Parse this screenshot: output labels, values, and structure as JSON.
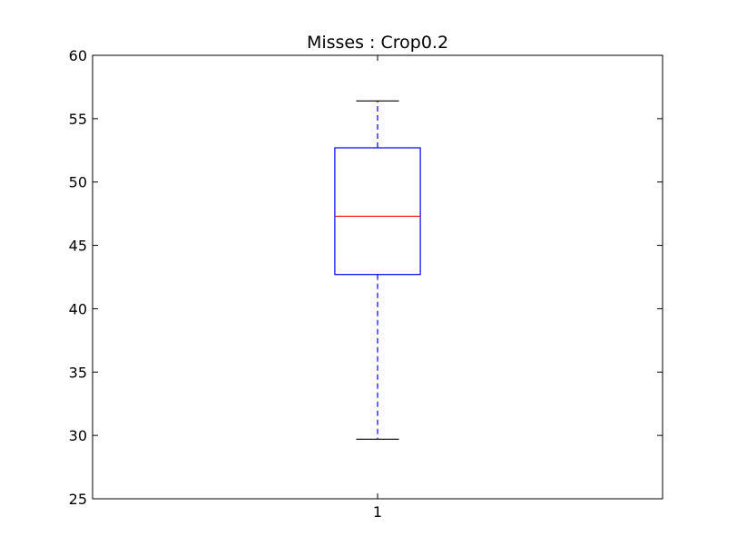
{
  "chart_data": {
    "type": "box",
    "title": "Misses : Crop0.2",
    "xlabel": "",
    "ylabel": "",
    "categories": [
      "1"
    ],
    "ylim": [
      25,
      60
    ],
    "yticks": [
      25,
      30,
      35,
      40,
      45,
      50,
      55,
      60
    ],
    "grid": false,
    "boxes": [
      {
        "category": "1",
        "whisker_low": 29.7,
        "q1": 42.7,
        "median": 47.3,
        "q3": 52.7,
        "whisker_high": 56.4
      }
    ],
    "colors": {
      "box": "#0000ff",
      "median": "#ff0000",
      "whisker": "#0000ff",
      "cap": "#000000",
      "axes": "#000000"
    }
  }
}
